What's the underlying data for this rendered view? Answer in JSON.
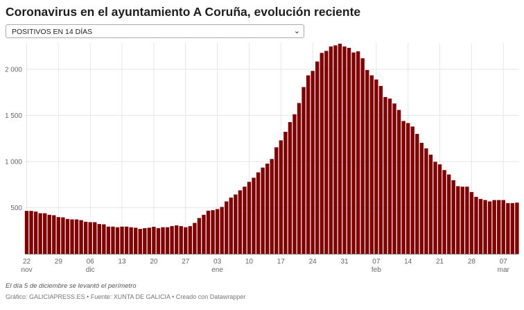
{
  "title": "Coronavirus en el ayuntamiento A Coruña, evolución reciente",
  "selector": {
    "selected": "POSITIVOS EN 14 DÍAS",
    "icon": "chevron-down-icon"
  },
  "note": "El día 5 de diciembre se levantó el perímetro",
  "footer": "Gráfico: GALICIAPRESS.ES • Fuente: XUNTA DE GALICIA • Creado con Datawrapper",
  "colors": {
    "bar": "#7f0000",
    "grid": "#e6e6e6",
    "axis": "#888888"
  },
  "chart_data": {
    "type": "bar",
    "title": "",
    "xlabel": "",
    "ylabel": "",
    "ylim": [
      0,
      2300
    ],
    "grid": true,
    "y_ticks": [
      {
        "value": 500,
        "label": "500"
      },
      {
        "value": 1000,
        "label": "1 000"
      },
      {
        "value": 1500,
        "label": "1 500"
      },
      {
        "value": 2000,
        "label": "2 000"
      }
    ],
    "x_ticks": [
      {
        "date": "22 nov",
        "label": "22",
        "month": "nov"
      },
      {
        "date": "29 nov",
        "label": "29",
        "month": ""
      },
      {
        "date": "06 dic",
        "label": "06",
        "month": "dic"
      },
      {
        "date": "13 dic",
        "label": "13",
        "month": ""
      },
      {
        "date": "20 dic",
        "label": "20",
        "month": ""
      },
      {
        "date": "27 dic",
        "label": "27",
        "month": ""
      },
      {
        "date": "03 ene",
        "label": "03",
        "month": "ene"
      },
      {
        "date": "10 ene",
        "label": "10",
        "month": ""
      },
      {
        "date": "17 ene",
        "label": "17",
        "month": ""
      },
      {
        "date": "24 ene",
        "label": "24",
        "month": ""
      },
      {
        "date": "31 ene",
        "label": "31",
        "month": ""
      },
      {
        "date": "07 feb",
        "label": "07",
        "month": "feb"
      },
      {
        "date": "14 feb",
        "label": "14",
        "month": ""
      },
      {
        "date": "21 feb",
        "label": "21",
        "month": ""
      },
      {
        "date": "28 feb",
        "label": "28",
        "month": ""
      },
      {
        "date": "07 mar",
        "label": "07",
        "month": "mar"
      }
    ],
    "categories": [
      "22 nov",
      "23 nov",
      "24 nov",
      "25 nov",
      "26 nov",
      "27 nov",
      "28 nov",
      "29 nov",
      "30 nov",
      "01 dic",
      "02 dic",
      "03 dic",
      "04 dic",
      "05 dic",
      "06 dic",
      "07 dic",
      "08 dic",
      "09 dic",
      "10 dic",
      "11 dic",
      "12 dic",
      "13 dic",
      "14 dic",
      "15 dic",
      "16 dic",
      "17 dic",
      "18 dic",
      "19 dic",
      "20 dic",
      "21 dic",
      "22 dic",
      "23 dic",
      "24 dic",
      "25 dic",
      "26 dic",
      "27 dic",
      "28 dic",
      "29 dic",
      "30 dic",
      "31 dic",
      "01 ene",
      "02 ene",
      "03 ene",
      "04 ene",
      "05 ene",
      "06 ene",
      "07 ene",
      "08 ene",
      "09 ene",
      "10 ene",
      "11 ene",
      "12 ene",
      "13 ene",
      "14 ene",
      "15 ene",
      "16 ene",
      "17 ene",
      "18 ene",
      "19 ene",
      "20 ene",
      "21 ene",
      "22 ene",
      "23 ene",
      "24 ene",
      "25 ene",
      "26 ene",
      "27 ene",
      "28 ene",
      "29 ene",
      "30 ene",
      "31 ene",
      "01 feb",
      "02 feb",
      "03 feb",
      "04 feb",
      "05 feb",
      "06 feb",
      "07 feb",
      "08 feb",
      "09 feb",
      "10 feb",
      "11 feb",
      "12 feb",
      "13 feb",
      "14 feb",
      "15 feb",
      "16 feb",
      "17 feb",
      "18 feb",
      "19 feb",
      "20 feb",
      "21 feb",
      "22 feb",
      "23 feb",
      "24 feb",
      "25 feb",
      "26 feb",
      "27 feb",
      "28 feb",
      "01 mar",
      "02 mar",
      "03 mar",
      "04 mar",
      "05 mar",
      "06 mar",
      "07 mar",
      "08 mar",
      "09 mar",
      "10 mar"
    ],
    "values": [
      465,
      465,
      458,
      440,
      440,
      423,
      418,
      398,
      395,
      378,
      373,
      373,
      365,
      348,
      343,
      343,
      323,
      320,
      295,
      295,
      288,
      295,
      295,
      288,
      283,
      270,
      278,
      283,
      293,
      278,
      288,
      288,
      300,
      308,
      300,
      288,
      300,
      335,
      388,
      423,
      468,
      473,
      485,
      508,
      568,
      610,
      643,
      688,
      728,
      780,
      825,
      883,
      935,
      978,
      1028,
      1155,
      1230,
      1323,
      1428,
      1513,
      1635,
      1808,
      1935,
      1983,
      2085,
      2178,
      2200,
      2248,
      2260,
      2278,
      2248,
      2233,
      2183,
      2195,
      2120,
      1993,
      1935,
      1890,
      1820,
      1700,
      1683,
      1630,
      1560,
      1440,
      1418,
      1380,
      1300,
      1203,
      1143,
      1075,
      998,
      970,
      908,
      860,
      798,
      733,
      728,
      728,
      670,
      618,
      595,
      583,
      568,
      583,
      583,
      583,
      550,
      550,
      555
    ]
  }
}
